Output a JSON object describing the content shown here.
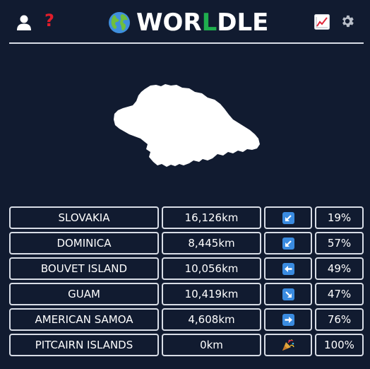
{
  "header": {
    "title_pre": "WOR",
    "title_accent": "L",
    "title_post": "DLE",
    "accent_color": "#1fae4e",
    "help_label": "?",
    "left_icons": [
      "user-icon",
      "help-icon"
    ],
    "right_icons": [
      "stats-icon",
      "gear-icon"
    ]
  },
  "guesses": [
    {
      "country": "SLOVAKIA",
      "distance": "16,126km",
      "direction": "arrow-down-left-icon",
      "proximity": "19%"
    },
    {
      "country": "DOMINICA",
      "distance": "8,445km",
      "direction": "arrow-down-left-icon",
      "proximity": "57%"
    },
    {
      "country": "BOUVET ISLAND",
      "distance": "10,056km",
      "direction": "arrow-left-icon",
      "proximity": "49%"
    },
    {
      "country": "GUAM",
      "distance": "10,419km",
      "direction": "arrow-down-right-icon",
      "proximity": "47%"
    },
    {
      "country": "AMERICAN SAMOA",
      "distance": "4,608km",
      "direction": "arrow-right-icon",
      "proximity": "76%"
    },
    {
      "country": "PITCAIRN ISLANDS",
      "distance": "0km",
      "direction": "party-popper-icon",
      "proximity": "100%"
    }
  ]
}
